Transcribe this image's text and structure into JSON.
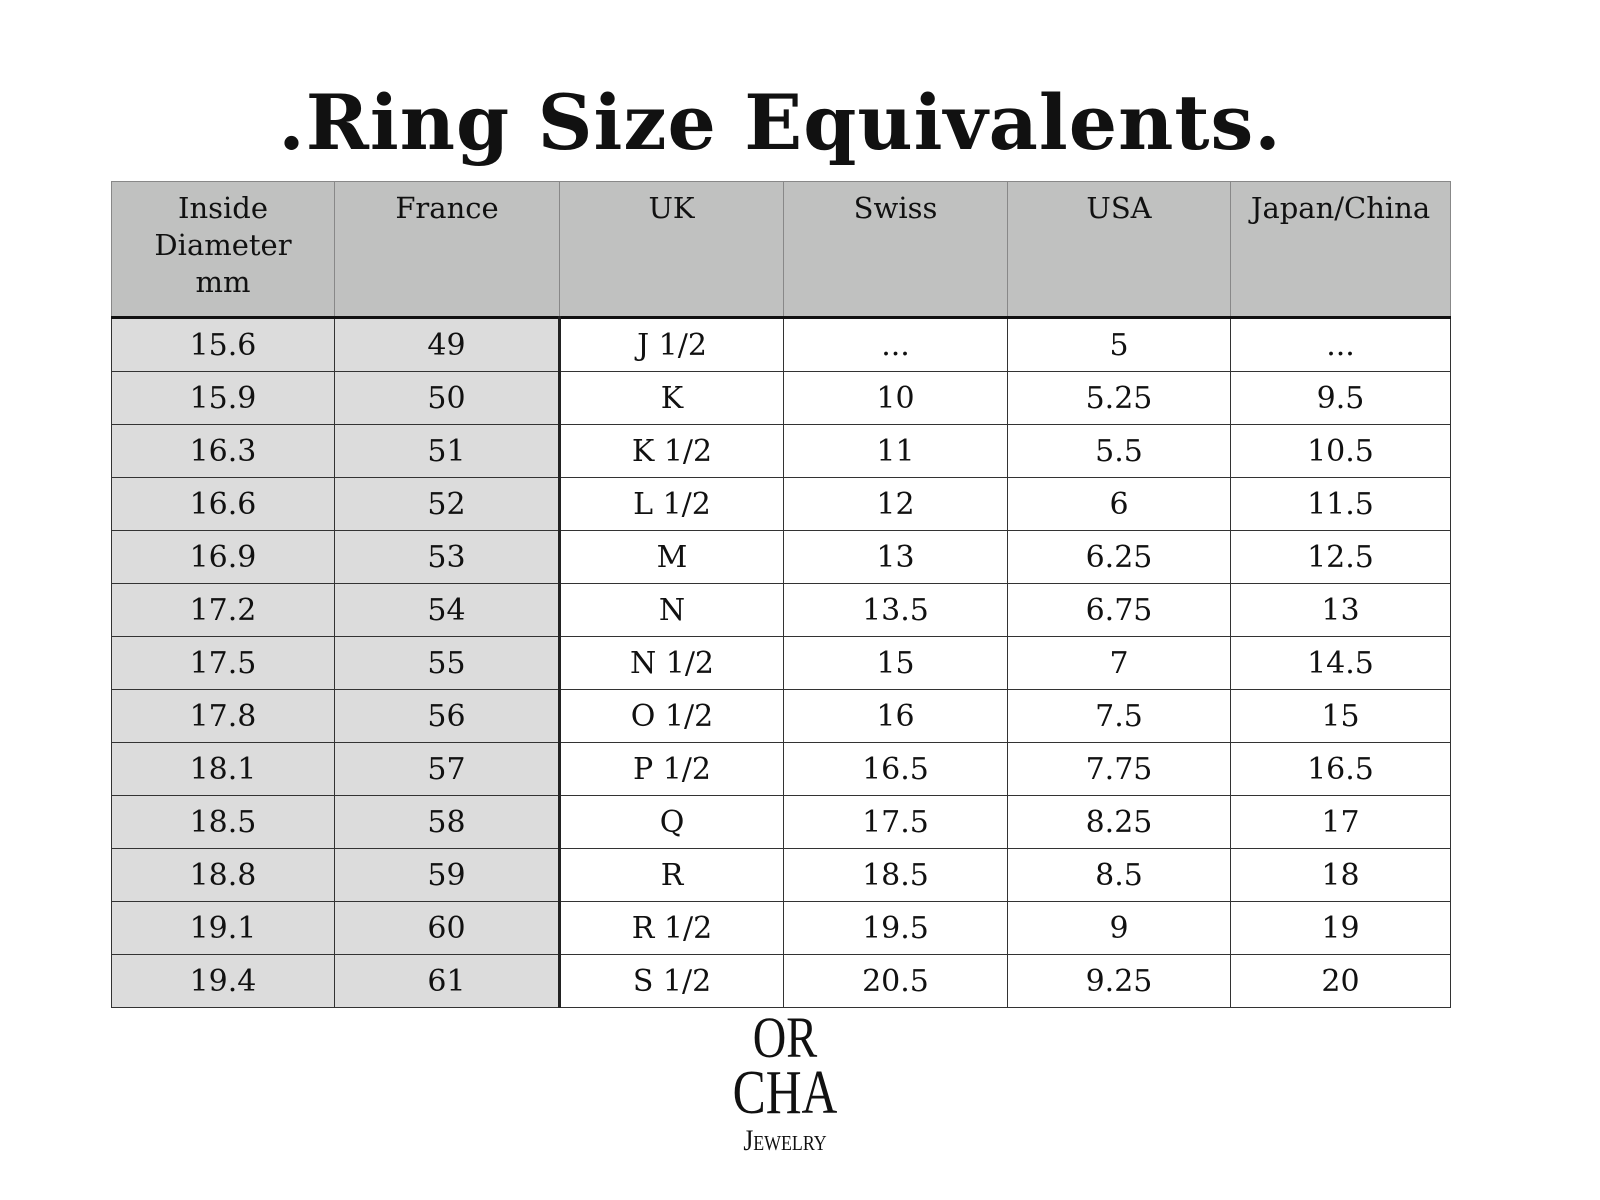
{
  "title": ".Ring Size Equivalents.",
  "table": {
    "headers": [
      "Inside Diameter mm",
      "France",
      "UK",
      "Swiss",
      "USA",
      "Japan/China"
    ],
    "header_lines": [
      [
        "Inside",
        "Diameter",
        "mm"
      ]
    ],
    "rows": [
      [
        "15.6",
        "49",
        "J 1/2",
        "...",
        "5",
        "..."
      ],
      [
        "15.9",
        "50",
        "K",
        "10",
        "5.25",
        "9.5"
      ],
      [
        "16.3",
        "51",
        "K 1/2",
        "11",
        "5.5",
        "10.5"
      ],
      [
        "16.6",
        "52",
        "L 1/2",
        "12",
        "6",
        "11.5"
      ],
      [
        "16.9",
        "53",
        "M",
        "13",
        "6.25",
        "12.5"
      ],
      [
        "17.2",
        "54",
        "N",
        "13.5",
        "6.75",
        "13"
      ],
      [
        "17.5",
        "55",
        "N 1/2",
        "15",
        "7",
        "14.5"
      ],
      [
        "17.8",
        "56",
        "O 1/2",
        "16",
        "7.5",
        "15"
      ],
      [
        "18.1",
        "57",
        "P 1/2",
        "16.5",
        "7.75",
        "16.5"
      ],
      [
        "18.5",
        "58",
        "Q",
        "17.5",
        "8.25",
        "17"
      ],
      [
        "18.8",
        "59",
        "R",
        "18.5",
        "8.5",
        "18"
      ],
      [
        "19.1",
        "60",
        "R 1/2",
        "19.5",
        "9",
        "19"
      ],
      [
        "19.4",
        "61",
        "S 1/2",
        "20.5",
        "9.25",
        "20"
      ]
    ]
  },
  "logo": {
    "line1": "OR",
    "line2": "CHA",
    "line3": "Jewelry"
  },
  "colors": {
    "header_bg": "#c0c1c0",
    "shaded_col_bg": "#dcdcdc"
  }
}
